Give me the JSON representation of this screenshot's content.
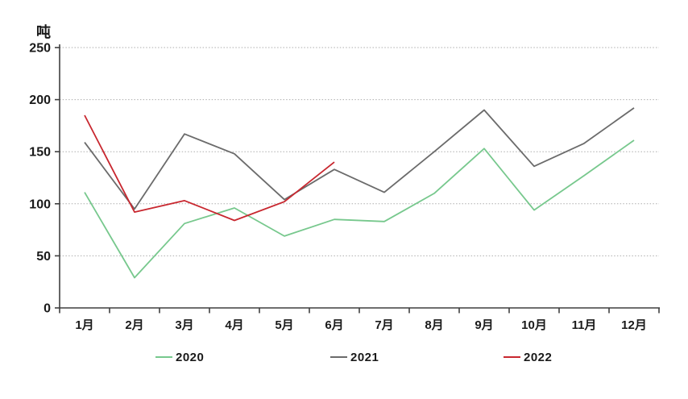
{
  "chart_data": {
    "type": "line",
    "title": "",
    "xlabel": "",
    "ylabel": "吨",
    "categories": [
      "1月",
      "2月",
      "3月",
      "4月",
      "5月",
      "6月",
      "7月",
      "8月",
      "9月",
      "10月",
      "11月",
      "12月"
    ],
    "y_ticks": [
      0,
      50,
      100,
      150,
      200,
      250
    ],
    "ylim": [
      0,
      250
    ],
    "grid": "horizontal-dotted",
    "legend_position": "bottom",
    "series": [
      {
        "name": "2020",
        "color": "#77c88d",
        "values": [
          111,
          29,
          81,
          96,
          69,
          85,
          83,
          110,
          153,
          94,
          127,
          161
        ]
      },
      {
        "name": "2021",
        "color": "#6b6b6b",
        "values": [
          159,
          95,
          167,
          148,
          104,
          133,
          111,
          150,
          190,
          136,
          158,
          192
        ]
      },
      {
        "name": "2022",
        "color": "#c8272f",
        "values": [
          185,
          92,
          103,
          84,
          102,
          140
        ]
      }
    ]
  },
  "colors": {
    "axis": "#3f3f3f",
    "grid": "#adadad",
    "text": "#1a1a1a",
    "background": "#ffffff"
  }
}
